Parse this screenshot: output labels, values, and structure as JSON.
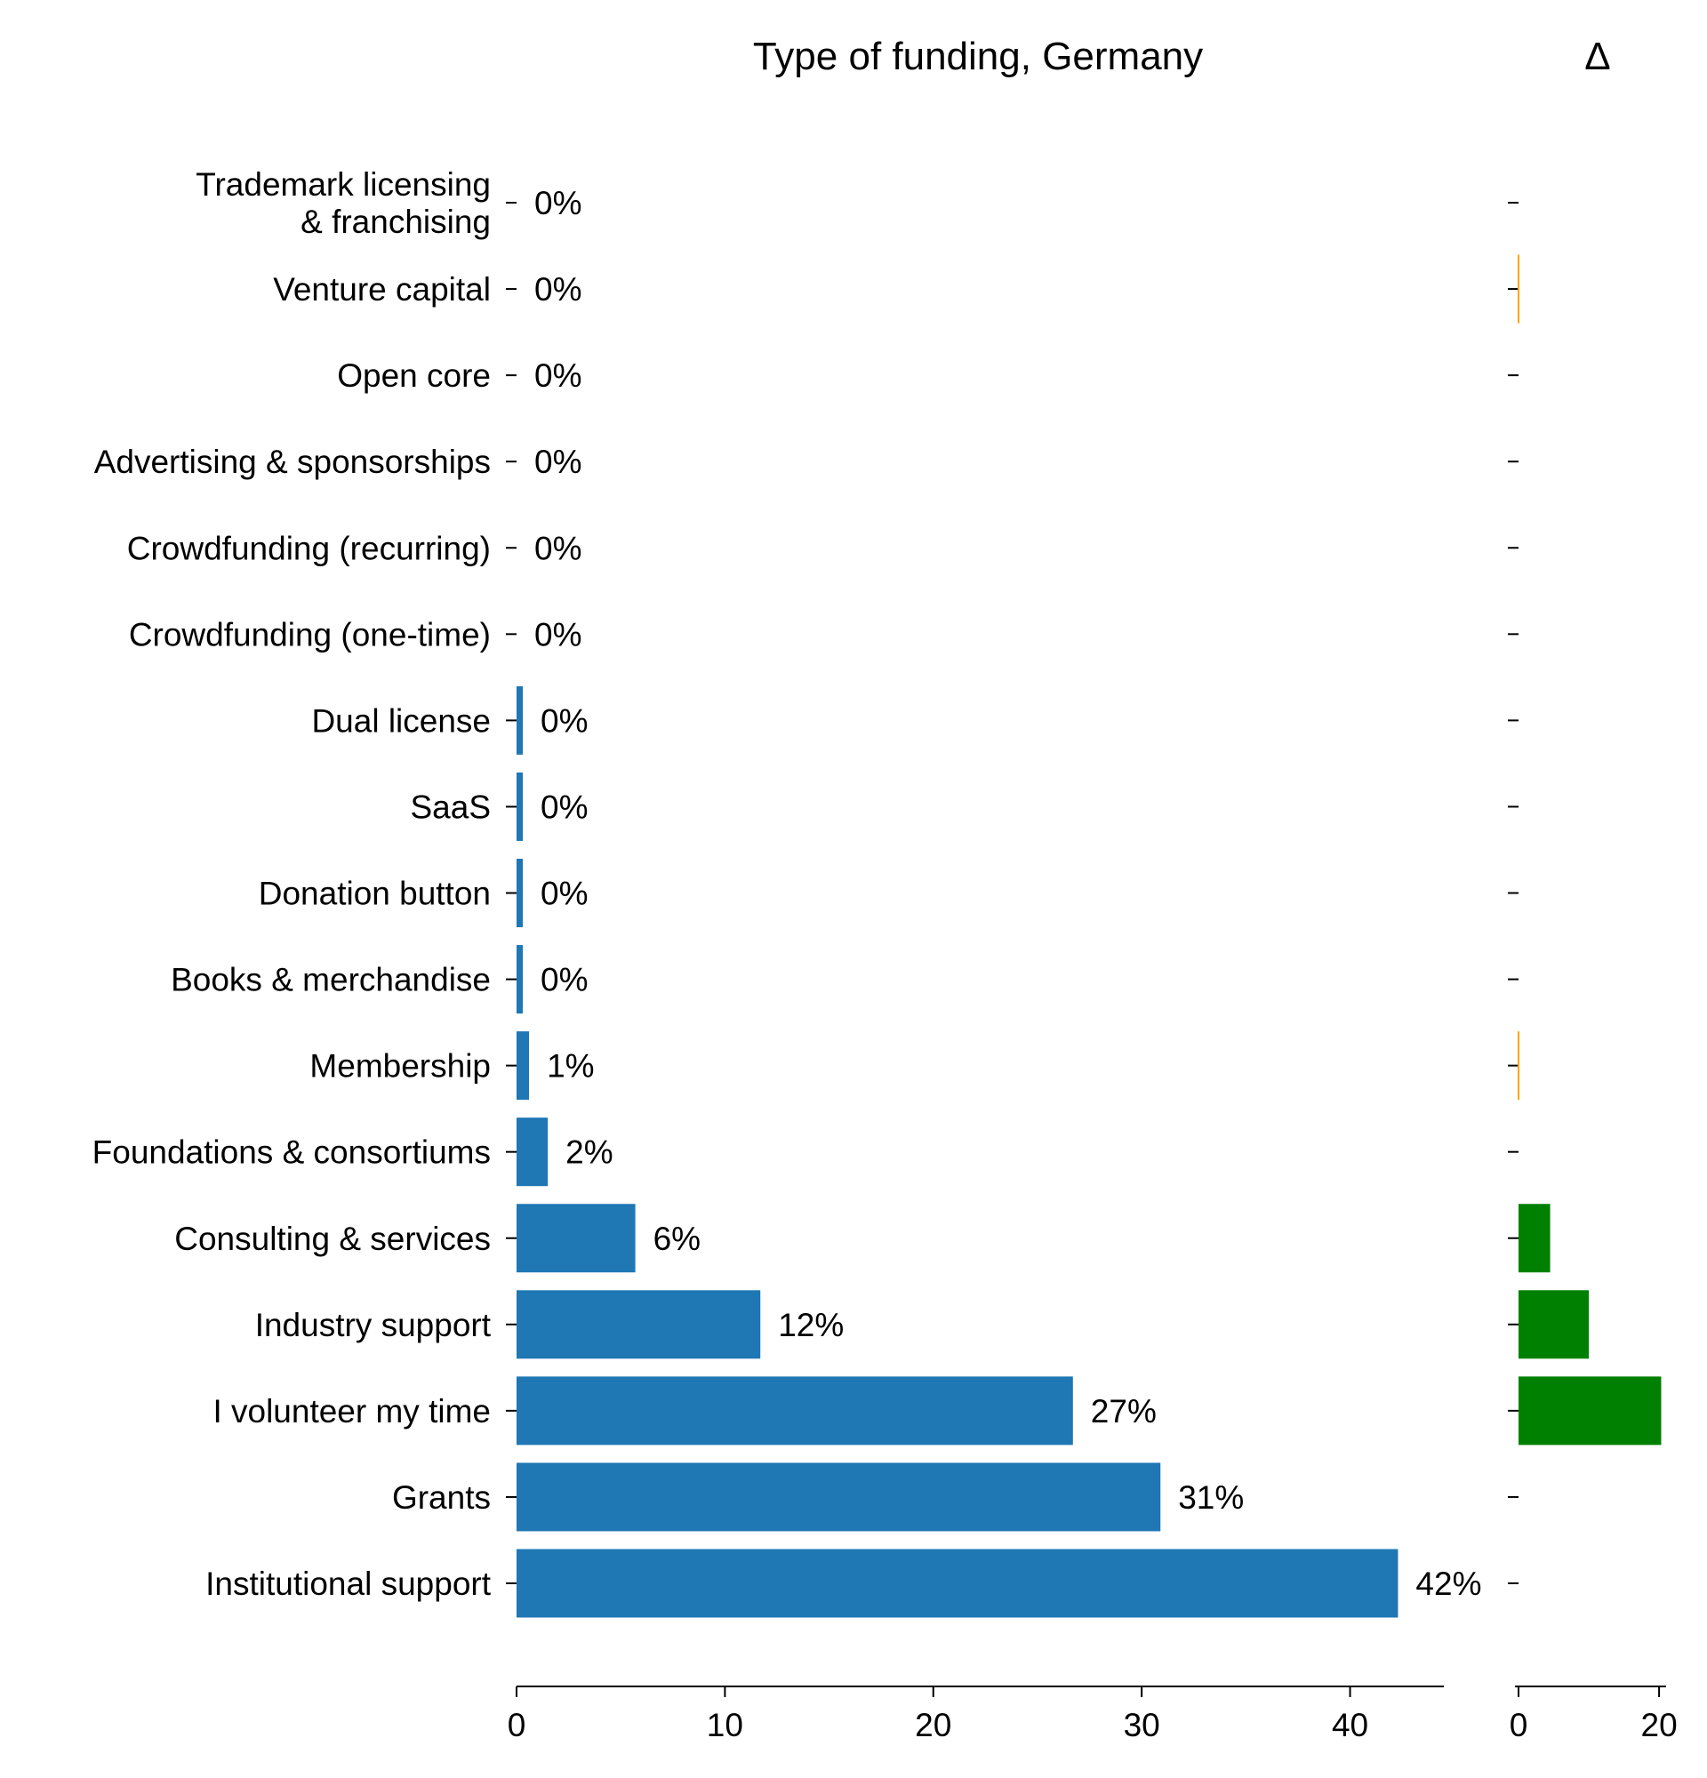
{
  "chart_data": {
    "type": "bar",
    "orientation": "horizontal",
    "title": "Type of funding, Germany",
    "delta_title": "Δ",
    "categories": [
      [
        "Trademark licensing",
        "& franchising"
      ],
      "Venture capital",
      "Open core",
      "Advertising & sponsorships",
      "Crowdfunding (recurring)",
      "Crowdfunding (one-time)",
      "Dual license",
      "SaaS",
      "Donation button",
      "Books & merchandise",
      "Membership",
      "Foundations & consortiums",
      "Consulting & services",
      "Industry support",
      "I volunteer my time",
      "Grants",
      "Institutional support"
    ],
    "values": [
      0,
      0,
      0,
      0,
      0,
      0,
      0.3,
      0.3,
      0.3,
      0.3,
      0.6,
      1.5,
      5.7,
      11.7,
      26.7,
      30.9,
      42.3
    ],
    "value_labels": [
      "0%",
      "0%",
      "0%",
      "0%",
      "0%",
      "0%",
      "0%",
      "0%",
      "0%",
      "0%",
      "1%",
      "2%",
      "6%",
      "12%",
      "27%",
      "31%",
      "42%"
    ],
    "xlim": [
      0,
      44.5
    ],
    "xticks": [
      0,
      10,
      20,
      30,
      40
    ],
    "delta_values": [
      0,
      0.1,
      0,
      0,
      0,
      0,
      0,
      0,
      0,
      0,
      0.1,
      0,
      4.5,
      10.0,
      20.3,
      0,
      0
    ],
    "delta_xlim": [
      0,
      21
    ],
    "delta_xticks": [
      0,
      20
    ],
    "colors": {
      "bars": "#1f77b4",
      "delta_positive": "#008000",
      "delta_small": "#ffa500",
      "axis": "#000000",
      "text": "#000000"
    },
    "grid": false
  }
}
